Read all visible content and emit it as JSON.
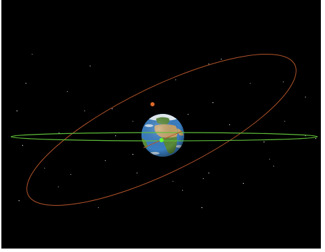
{
  "scene": {
    "background": "#000000",
    "objects": [
      {
        "id": "earth",
        "type": "planet",
        "icon": "earth-globe"
      },
      {
        "id": "equatorial-orbit",
        "type": "orbit",
        "color": "#5fbf3a"
      },
      {
        "id": "inclined-orbit",
        "type": "orbit",
        "color": "#b5552a"
      },
      {
        "id": "satellite-green",
        "type": "satellite",
        "color": "#66ff33"
      },
      {
        "id": "satellite-orange",
        "type": "satellite",
        "color": "#e06a28"
      }
    ]
  },
  "colors": {
    "ocean": "#3a7ec2",
    "land_green": "#5a8a3a",
    "land_desert": "#c8a46a",
    "ice": "#e9f1f6",
    "star": "#ffffff"
  }
}
